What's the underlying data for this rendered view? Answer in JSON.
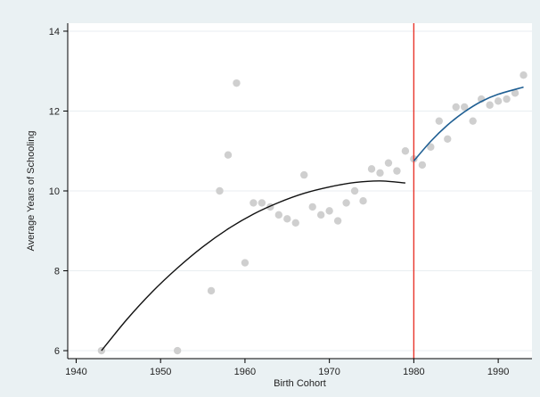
{
  "chart_data": {
    "type": "scatter",
    "title": "",
    "xlabel": "Birth Cohort",
    "ylabel": "Average Years of Schooling",
    "xlim": [
      1939,
      1994
    ],
    "ylim": [
      5.8,
      14.2
    ],
    "xticks": [
      1940,
      1950,
      1960,
      1970,
      1980,
      1990
    ],
    "yticks": [
      6,
      8,
      10,
      12,
      14
    ],
    "grid": "horizontal",
    "legend": "none",
    "cutoff": 1980,
    "points": [
      [
        1943,
        6.0
      ],
      [
        1952,
        6.0
      ],
      [
        1956,
        7.5
      ],
      [
        1957,
        10.0
      ],
      [
        1958,
        10.9
      ],
      [
        1959,
        12.7
      ],
      [
        1960,
        8.2
      ],
      [
        1961,
        9.7
      ],
      [
        1962,
        9.7
      ],
      [
        1963,
        9.6
      ],
      [
        1964,
        9.4
      ],
      [
        1965,
        9.3
      ],
      [
        1966,
        9.2
      ],
      [
        1967,
        10.4
      ],
      [
        1968,
        9.6
      ],
      [
        1969,
        9.4
      ],
      [
        1970,
        9.5
      ],
      [
        1971,
        9.25
      ],
      [
        1972,
        9.7
      ],
      [
        1973,
        10.0
      ],
      [
        1974,
        9.75
      ],
      [
        1975,
        10.55
      ],
      [
        1976,
        10.45
      ],
      [
        1977,
        10.7
      ],
      [
        1978,
        10.5
      ],
      [
        1979,
        11.0
      ],
      [
        1980,
        10.8
      ],
      [
        1981,
        10.65
      ],
      [
        1982,
        11.1
      ],
      [
        1983,
        11.75
      ],
      [
        1984,
        11.3
      ],
      [
        1985,
        12.1
      ],
      [
        1986,
        12.1
      ],
      [
        1987,
        11.75
      ],
      [
        1988,
        12.3
      ],
      [
        1989,
        12.15
      ],
      [
        1990,
        12.25
      ],
      [
        1991,
        12.3
      ],
      [
        1992,
        12.45
      ],
      [
        1993,
        12.9
      ]
    ],
    "fit_left": {
      "x": [
        1943,
        1946,
        1949,
        1952,
        1955,
        1958,
        1961,
        1964,
        1967,
        1970,
        1973,
        1976,
        1979
      ],
      "y": [
        6.0,
        6.78,
        7.47,
        8.07,
        8.6,
        9.05,
        9.42,
        9.71,
        9.94,
        10.1,
        10.21,
        10.25,
        10.2
      ]
    },
    "fit_right": {
      "x": [
        1980,
        1982,
        1984,
        1986,
        1988,
        1990,
        1993
      ],
      "y": [
        10.75,
        11.24,
        11.65,
        11.98,
        12.24,
        12.42,
        12.6
      ]
    },
    "colors": {
      "background": "#eaf1f3",
      "plot_bg": "#ffffff",
      "points": "#cfcfcf",
      "fit_left": "#111111",
      "fit_right": "#1f5f93",
      "cutoff": "#e8352b",
      "grid": "#e8eef1",
      "axis": "#000000"
    }
  }
}
